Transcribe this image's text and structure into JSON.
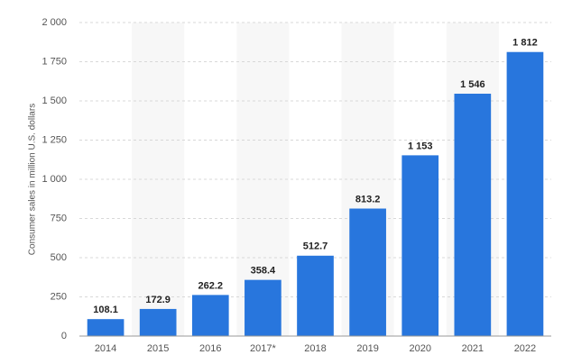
{
  "chart_data": {
    "type": "bar",
    "y_label": "Consumer sales in million U.S. dollars",
    "categories": [
      "2014",
      "2015",
      "2016",
      "2017*",
      "2018",
      "2019",
      "2020",
      "2021",
      "2022"
    ],
    "values": [
      108.1,
      172.9,
      262.2,
      358.4,
      512.7,
      813.2,
      1153,
      1546,
      1812
    ],
    "value_labels": [
      "108.1",
      "172.9",
      "262.2",
      "358.4",
      "512.7",
      "813.2",
      "1 153",
      "1 546",
      "1 812"
    ],
    "color": "#2876dd",
    "ylim": [
      0,
      2000
    ],
    "yticks": [
      0,
      250,
      500,
      750,
      {
        "value": 1000,
        "label": "1 000"
      },
      {
        "value": 1250,
        "label": "1 250"
      },
      {
        "value": 1500,
        "label": "1 500"
      },
      {
        "value": 1750,
        "label": "1 750"
      },
      {
        "value": 2000,
        "label": "2 000"
      }
    ],
    "grid": true
  }
}
